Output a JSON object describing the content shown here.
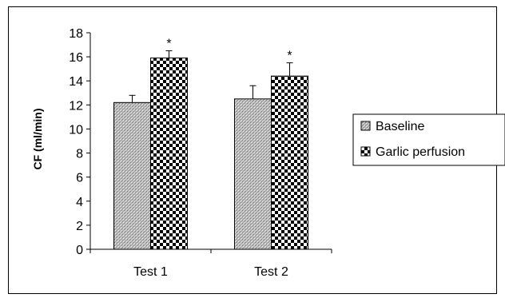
{
  "chart_data": {
    "type": "bar",
    "title": "",
    "xlabel": "",
    "ylabel": "CF (ml/min)",
    "ylim": [
      0,
      18
    ],
    "yticks": [
      0,
      2,
      4,
      6,
      8,
      10,
      12,
      14,
      16,
      18
    ],
    "categories": [
      "Test 1",
      "Test 2"
    ],
    "series": [
      {
        "name": "Baseline",
        "values": [
          12.2,
          12.5
        ],
        "errors": [
          0.6,
          1.1
        ],
        "pattern": "fine-dots",
        "color": "#c0c0c0"
      },
      {
        "name": "Garlic perfusion",
        "values": [
          15.9,
          14.4
        ],
        "errors": [
          0.6,
          1.1
        ],
        "pattern": "checkerboard",
        "color": "#000000"
      }
    ],
    "annotations": [
      {
        "category": "Test 1",
        "series": "Garlic perfusion",
        "text": "*"
      },
      {
        "category": "Test 2",
        "series": "Garlic perfusion",
        "text": "*"
      }
    ],
    "grid": false,
    "legend_position": "right"
  }
}
